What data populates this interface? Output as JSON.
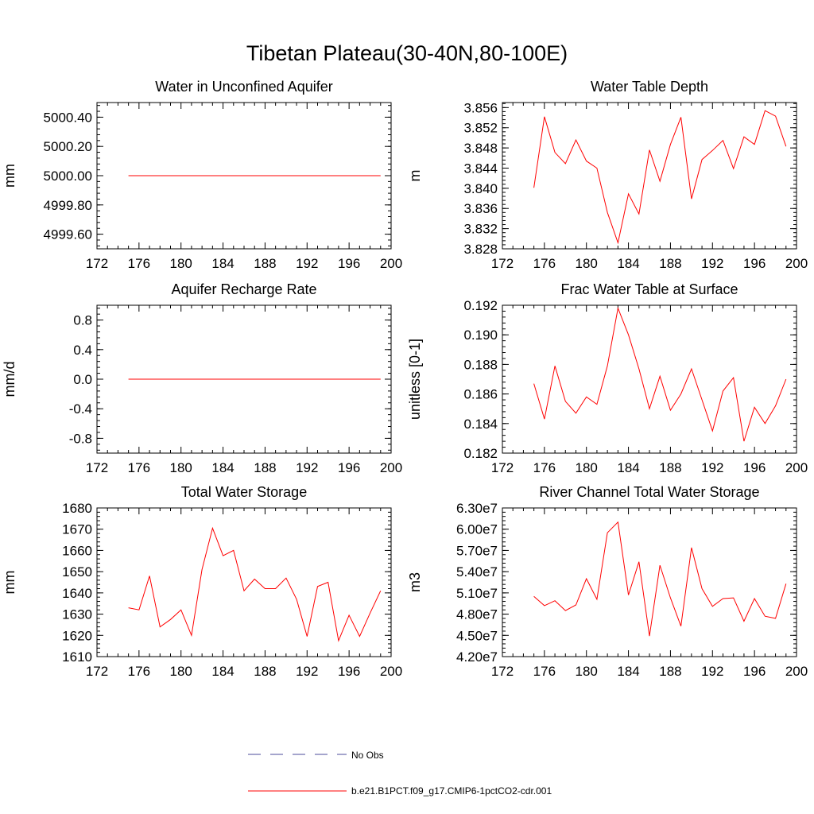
{
  "figure": {
    "title": "Tibetan Plateau(30-40N,80-100E)",
    "series_color": "#ff0000",
    "obs_color": "#4b4b9b"
  },
  "legend": {
    "entries": [
      {
        "label": "No Obs",
        "style": "dashed",
        "color": "#4b4b9b"
      },
      {
        "label": "b.e21.B1PCT.f09_g17.CMIP6-1pctCO2-cdr.001",
        "style": "solid",
        "color": "#ff0000"
      }
    ]
  },
  "chart_data": [
    {
      "type": "line",
      "title": "Water in Unconfined Aquifer",
      "ylabel": "mm",
      "xlim": [
        172,
        200
      ],
      "ylim": [
        4999.5,
        5000.5
      ],
      "xticks": [
        172,
        176,
        180,
        184,
        188,
        192,
        196,
        200
      ],
      "yticks": [
        4999.6,
        4999.8,
        5000.0,
        5000.2,
        5000.4
      ],
      "ytick_labels": [
        "4999.60",
        "4999.80",
        "5000.00",
        "5000.20",
        "5000.40"
      ],
      "x": [
        175,
        176,
        177,
        178,
        179,
        180,
        181,
        182,
        183,
        184,
        185,
        186,
        187,
        188,
        189,
        190,
        191,
        192,
        193,
        194,
        195,
        196,
        197,
        198,
        199
      ],
      "y": [
        5000,
        5000,
        5000,
        5000,
        5000,
        5000,
        5000,
        5000,
        5000,
        5000,
        5000,
        5000,
        5000,
        5000,
        5000,
        5000,
        5000,
        5000,
        5000,
        5000,
        5000,
        5000,
        5000,
        5000,
        5000
      ]
    },
    {
      "type": "line",
      "title": "Water Table Depth",
      "ylabel": "m",
      "xlim": [
        172,
        200
      ],
      "ylim": [
        3.828,
        3.857
      ],
      "xticks": [
        172,
        176,
        180,
        184,
        188,
        192,
        196,
        200
      ],
      "yticks": [
        3.828,
        3.832,
        3.836,
        3.84,
        3.844,
        3.848,
        3.852,
        3.856
      ],
      "ytick_labels": [
        "3.828",
        "3.832",
        "3.836",
        "3.840",
        "3.844",
        "3.848",
        "3.852",
        "3.856"
      ],
      "x": [
        175,
        176,
        177,
        178,
        179,
        180,
        181,
        182,
        183,
        184,
        185,
        186,
        187,
        188,
        189,
        190,
        191,
        192,
        193,
        194,
        195,
        196,
        197,
        198,
        199
      ],
      "y": [
        3.8401,
        3.8542,
        3.8471,
        3.8449,
        3.8496,
        3.8454,
        3.844,
        3.8352,
        3.8292,
        3.8389,
        3.8349,
        3.8476,
        3.8414,
        3.8487,
        3.8541,
        3.8379,
        3.8457,
        3.8475,
        3.8495,
        3.8439,
        3.8502,
        3.8487,
        3.8554,
        3.8543,
        3.8483
      ]
    },
    {
      "type": "line",
      "title": "Aquifer Recharge Rate",
      "ylabel": "mm/d",
      "xlim": [
        172,
        200
      ],
      "ylim": [
        -1.0,
        1.0
      ],
      "xticks": [
        172,
        176,
        180,
        184,
        188,
        192,
        196,
        200
      ],
      "yticks": [
        -0.8,
        -0.4,
        0.0,
        0.4,
        0.8
      ],
      "ytick_labels": [
        "-0.8",
        "-0.4",
        "0.0",
        "0.4",
        "0.8"
      ],
      "x": [
        175,
        176,
        177,
        178,
        179,
        180,
        181,
        182,
        183,
        184,
        185,
        186,
        187,
        188,
        189,
        190,
        191,
        192,
        193,
        194,
        195,
        196,
        197,
        198,
        199
      ],
      "y": [
        0,
        0,
        0,
        0,
        0,
        0,
        0,
        0,
        0,
        0,
        0,
        0,
        0,
        0,
        0,
        0,
        0,
        0,
        0,
        0,
        0,
        0,
        0,
        0,
        0
      ]
    },
    {
      "type": "line",
      "title": "Frac Water Table at Surface",
      "ylabel": "unitless [0-1]",
      "xlim": [
        172,
        200
      ],
      "ylim": [
        0.182,
        0.192
      ],
      "xticks": [
        172,
        176,
        180,
        184,
        188,
        192,
        196,
        200
      ],
      "yticks": [
        0.182,
        0.184,
        0.186,
        0.188,
        0.19,
        0.192
      ],
      "ytick_labels": [
        "0.182",
        "0.184",
        "0.186",
        "0.188",
        "0.190",
        "0.192"
      ],
      "x": [
        175,
        176,
        177,
        178,
        179,
        180,
        181,
        182,
        183,
        184,
        185,
        186,
        187,
        188,
        189,
        190,
        191,
        192,
        193,
        194,
        195,
        196,
        197,
        198,
        199
      ],
      "y": [
        0.1867,
        0.1843,
        0.1879,
        0.1855,
        0.1847,
        0.1858,
        0.1853,
        0.1879,
        0.1918,
        0.19,
        0.1877,
        0.185,
        0.1872,
        0.1849,
        0.186,
        0.1877,
        0.1856,
        0.1835,
        0.1862,
        0.1871,
        0.1828,
        0.1851,
        0.184,
        0.1852,
        0.187
      ]
    },
    {
      "type": "line",
      "title": "Total Water Storage",
      "ylabel": "mm",
      "xlim": [
        172,
        200
      ],
      "ylim": [
        1610,
        1680
      ],
      "xticks": [
        172,
        176,
        180,
        184,
        188,
        192,
        196,
        200
      ],
      "yticks": [
        1610,
        1620,
        1630,
        1640,
        1650,
        1660,
        1670,
        1680
      ],
      "ytick_labels": [
        "1610",
        "1620",
        "1630",
        "1640",
        "1650",
        "1660",
        "1670",
        "1680"
      ],
      "x": [
        175,
        176,
        177,
        178,
        179,
        180,
        181,
        182,
        183,
        184,
        185,
        186,
        187,
        188,
        189,
        190,
        191,
        192,
        193,
        194,
        195,
        196,
        197,
        198,
        199
      ],
      "y": [
        1633,
        1632,
        1648,
        1624,
        1627.5,
        1632,
        1620,
        1651,
        1670.5,
        1657.5,
        1660,
        1641,
        1646.5,
        1642,
        1642,
        1647,
        1637,
        1619.5,
        1643,
        1645,
        1617.5,
        1629.5,
        1619.5,
        1630.5,
        1641
      ]
    },
    {
      "type": "line",
      "title": "River Channel Total Water Storage",
      "ylabel": "m3",
      "xlim": [
        172,
        200
      ],
      "ylim": [
        42000000,
        63000000
      ],
      "xticks": [
        172,
        176,
        180,
        184,
        188,
        192,
        196,
        200
      ],
      "yticks": [
        42000000,
        45000000,
        48000000,
        51000000,
        54000000,
        57000000,
        60000000,
        63000000
      ],
      "ytick_labels": [
        "4.20e7",
        "4.50e7",
        "4.80e7",
        "5.10e7",
        "5.40e7",
        "5.70e7",
        "6.00e7",
        "6.30e7"
      ],
      "x": [
        175,
        176,
        177,
        178,
        179,
        180,
        181,
        182,
        183,
        184,
        185,
        186,
        187,
        188,
        189,
        190,
        191,
        192,
        193,
        194,
        195,
        196,
        197,
        198,
        199
      ],
      "y": [
        50500000,
        49200000,
        49900000,
        48500000,
        49300000,
        53000000,
        50100000,
        59500000,
        61000000,
        50700000,
        55400000,
        44900000,
        54900000,
        50300000,
        46300000,
        57400000,
        51600000,
        49100000,
        50200000,
        50300000,
        47000000,
        50200000,
        47700000,
        47400000,
        52300000
      ]
    }
  ]
}
